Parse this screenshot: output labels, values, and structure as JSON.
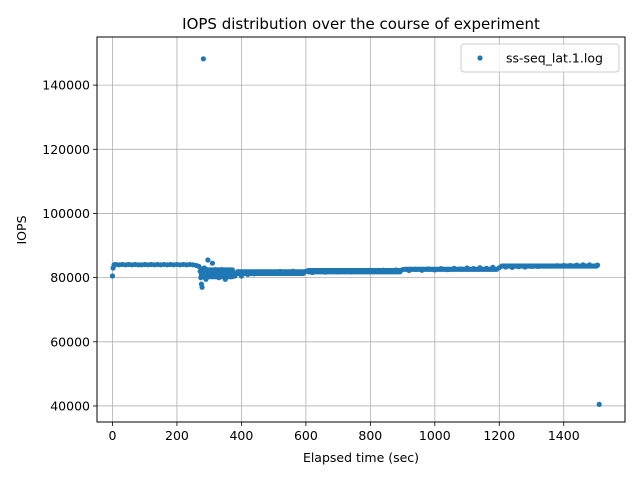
{
  "chart_data": {
    "type": "scatter",
    "title": "IOPS distribution over the course of experiment",
    "xlabel": "Elapsed time (sec)",
    "ylabel": "IOPS",
    "xlim": [
      -48,
      1590
    ],
    "ylim": [
      35000,
      155000
    ],
    "xticks": [
      0,
      200,
      400,
      600,
      800,
      1000,
      1200,
      1400
    ],
    "yticks": [
      40000,
      60000,
      80000,
      100000,
      120000,
      140000
    ],
    "grid": true,
    "legend_position": "top-right",
    "marker_color": "#1f77b4",
    "series": [
      {
        "name": "ss-seq_lat.1.log",
        "points": [
          [
            0,
            80500
          ],
          [
            2,
            83000
          ],
          [
            5,
            84000
          ],
          [
            10,
            84100
          ],
          [
            20,
            84000
          ],
          [
            30,
            84100
          ],
          [
            40,
            84000
          ],
          [
            50,
            84100
          ],
          [
            60,
            84000
          ],
          [
            70,
            84100
          ],
          [
            80,
            84000
          ],
          [
            90,
            84000
          ],
          [
            100,
            84100
          ],
          [
            110,
            84000
          ],
          [
            120,
            84100
          ],
          [
            130,
            84000
          ],
          [
            140,
            84100
          ],
          [
            150,
            84000
          ],
          [
            160,
            84100
          ],
          [
            170,
            84000
          ],
          [
            180,
            84100
          ],
          [
            190,
            84000
          ],
          [
            200,
            84100
          ],
          [
            210,
            84000
          ],
          [
            220,
            84100
          ],
          [
            230,
            84000
          ],
          [
            240,
            84100
          ],
          [
            250,
            84000
          ],
          [
            260,
            83800
          ],
          [
            268,
            83500
          ],
          [
            272,
            82000
          ],
          [
            274,
            80000
          ],
          [
            276,
            78000
          ],
          [
            278,
            77000
          ],
          [
            280,
            81500
          ],
          [
            282,
            148200
          ],
          [
            285,
            83000
          ],
          [
            287,
            80000
          ],
          [
            290,
            79500
          ],
          [
            293,
            82500
          ],
          [
            296,
            85500
          ],
          [
            300,
            82000
          ],
          [
            305,
            81000
          ],
          [
            310,
            84500
          ],
          [
            315,
            80500
          ],
          [
            320,
            82500
          ],
          [
            325,
            81000
          ],
          [
            330,
            80000
          ],
          [
            335,
            81500
          ],
          [
            340,
            82500
          ],
          [
            345,
            80500
          ],
          [
            350,
            79500
          ],
          [
            355,
            81000
          ],
          [
            360,
            80500
          ],
          [
            370,
            81500
          ],
          [
            380,
            80500
          ],
          [
            390,
            81800
          ],
          [
            400,
            80500
          ],
          [
            410,
            81500
          ],
          [
            420,
            81000
          ],
          [
            430,
            81500
          ],
          [
            440,
            81200
          ],
          [
            450,
            81600
          ],
          [
            460,
            81300
          ],
          [
            470,
            81700
          ],
          [
            480,
            81400
          ],
          [
            490,
            81800
          ],
          [
            500,
            81500
          ],
          [
            520,
            81900
          ],
          [
            540,
            81500
          ],
          [
            560,
            82000
          ],
          [
            580,
            81600
          ],
          [
            600,
            82000
          ],
          [
            620,
            81600
          ],
          [
            640,
            82100
          ],
          [
            660,
            81700
          ],
          [
            680,
            82100
          ],
          [
            700,
            81800
          ],
          [
            720,
            82200
          ],
          [
            740,
            81800
          ],
          [
            760,
            82200
          ],
          [
            780,
            81900
          ],
          [
            800,
            82300
          ],
          [
            820,
            81900
          ],
          [
            840,
            82300
          ],
          [
            860,
            82000
          ],
          [
            880,
            82400
          ],
          [
            900,
            82500
          ],
          [
            920,
            82200
          ],
          [
            940,
            82600
          ],
          [
            960,
            82300
          ],
          [
            980,
            82700
          ],
          [
            1000,
            82400
          ],
          [
            1020,
            82800
          ],
          [
            1040,
            82500
          ],
          [
            1060,
            82900
          ],
          [
            1080,
            82700
          ],
          [
            1100,
            83000
          ],
          [
            1120,
            82800
          ],
          [
            1140,
            83100
          ],
          [
            1160,
            82900
          ],
          [
            1180,
            83200
          ],
          [
            1200,
            83100
          ],
          [
            1220,
            83300
          ],
          [
            1240,
            83200
          ],
          [
            1260,
            83400
          ],
          [
            1280,
            83300
          ],
          [
            1300,
            83500
          ],
          [
            1320,
            83500
          ],
          [
            1340,
            83600
          ],
          [
            1360,
            83600
          ],
          [
            1380,
            83700
          ],
          [
            1400,
            83800
          ],
          [
            1420,
            83800
          ],
          [
            1440,
            83900
          ],
          [
            1460,
            84000
          ],
          [
            1480,
            84000
          ],
          [
            1500,
            83700
          ],
          [
            1505,
            83900
          ],
          [
            1510,
            40500
          ]
        ],
        "bands": [
          {
            "x_start": 5,
            "x_end": 265,
            "y_low": 83600,
            "y_high": 84500
          },
          {
            "x_start": 268,
            "x_end": 290,
            "y_low": 80000,
            "y_high": 83500
          },
          {
            "x_start": 290,
            "x_end": 380,
            "y_low": 79500,
            "y_high": 83200
          },
          {
            "x_start": 380,
            "x_end": 600,
            "y_low": 80500,
            "y_high": 82600
          },
          {
            "x_start": 600,
            "x_end": 900,
            "y_low": 81000,
            "y_high": 83000
          },
          {
            "x_start": 900,
            "x_end": 1200,
            "y_low": 81800,
            "y_high": 83400
          },
          {
            "x_start": 1200,
            "x_end": 1510,
            "y_low": 82800,
            "y_high": 84400
          }
        ]
      }
    ]
  }
}
